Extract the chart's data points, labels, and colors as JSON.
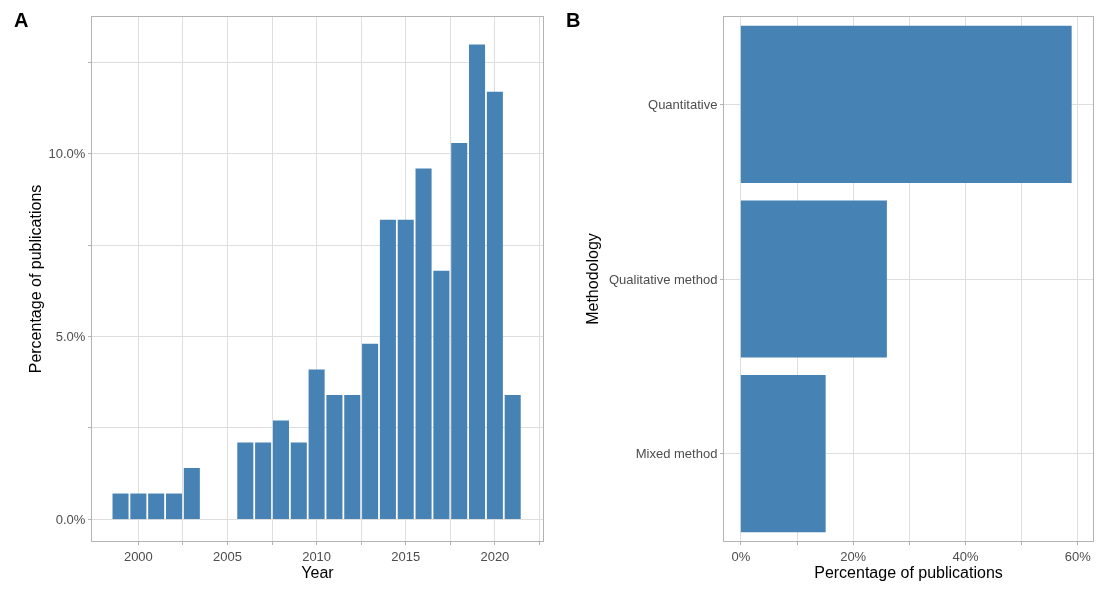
{
  "chart_data": [
    {
      "type": "bar",
      "title": "A",
      "xlabel": "Year",
      "ylabel": "Percentage of publications",
      "color": "#4682b4",
      "grid": true,
      "x": [
        1999,
        2000,
        2001,
        2002,
        2003,
        2006,
        2007,
        2008,
        2009,
        2010,
        2011,
        2012,
        2013,
        2014,
        2015,
        2016,
        2017,
        2018,
        2019,
        2020,
        2021
      ],
      "values": [
        0.7,
        0.7,
        0.7,
        0.7,
        1.4,
        2.1,
        2.1,
        2.7,
        2.1,
        4.1,
        3.4,
        3.4,
        4.8,
        8.2,
        8.2,
        9.6,
        6.8,
        10.3,
        13.0,
        11.7,
        3.4
      ],
      "xlim": [
        1997.4,
        2022.7
      ],
      "xticks": [
        2000,
        {
          "value": 2002.5,
          "label": null
        },
        2005,
        {
          "value": 2007.5,
          "label": null
        },
        2010,
        {
          "value": 2012.5,
          "label": null
        },
        2015,
        {
          "value": 2017.5,
          "label": null
        },
        2020,
        {
          "value": 2022.5,
          "label": null
        }
      ],
      "ylim": [
        -0.6,
        13.75
      ],
      "yticks": [
        {
          "value": 0,
          "label": "0.0%"
        },
        {
          "value": 2.5,
          "label": null
        },
        {
          "value": 5,
          "label": "5.0%"
        },
        {
          "value": 7.5,
          "label": null
        },
        {
          "value": 10,
          "label": "10.0%"
        },
        {
          "value": 12.5,
          "label": null
        }
      ]
    },
    {
      "type": "bar",
      "title": "B",
      "orientation": "horizontal",
      "xlabel": "Percentage of publications",
      "ylabel": "Methodology",
      "color": "#4682b4",
      "grid": true,
      "categories": [
        "Quantitative",
        "Qualitative method",
        "Mixed method"
      ],
      "values": [
        58.9,
        26.0,
        15.1
      ],
      "xlim": [
        -3.0,
        62.7
      ],
      "xticks": [
        {
          "value": 0,
          "label": "0%"
        },
        {
          "value": 10,
          "label": null
        },
        {
          "value": 20,
          "label": "20%"
        },
        {
          "value": 30,
          "label": null
        },
        {
          "value": 40,
          "label": "40%"
        },
        {
          "value": 50,
          "label": null
        },
        {
          "value": 60,
          "label": "60%"
        }
      ]
    }
  ]
}
